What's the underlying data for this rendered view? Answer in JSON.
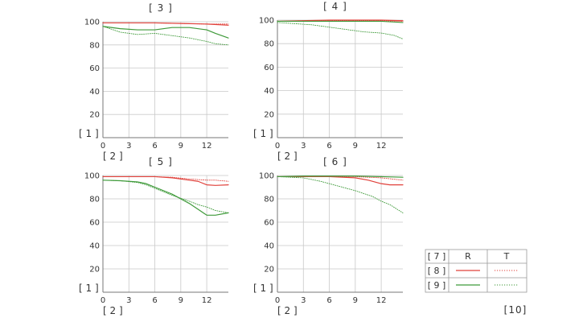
{
  "colors": {
    "red": "#e0403a",
    "green": "#3f9a3a",
    "grid": "#c9c9c9"
  },
  "axis_label_y": "[ 1 ]",
  "axis_label_x": "[ 2 ]",
  "corner_label": "[10]",
  "legend": {
    "header": {
      "key": "[ 7 ]",
      "col_r": "R",
      "col_t": "T"
    },
    "rows": [
      {
        "key": "[ 8 ]",
        "color": "#e0403a"
      },
      {
        "key": "[ 9 ]",
        "color": "#3f9a3a"
      }
    ]
  },
  "chart_data": [
    {
      "type": "line",
      "title": "[ 3 ]",
      "xlim": [
        0,
        14.5
      ],
      "ylim": [
        0,
        100
      ],
      "xticks": [
        0,
        3,
        6,
        9,
        12
      ],
      "yticks": [
        20,
        40,
        60,
        80,
        100
      ],
      "series": [
        {
          "color": "red",
          "style": "solid",
          "x": [
            0,
            3,
            6,
            9,
            12,
            14.5
          ],
          "y": [
            99,
            99,
            99,
            98.5,
            98,
            97
          ]
        },
        {
          "color": "red",
          "style": "dotted",
          "x": [
            0,
            3,
            6,
            9,
            12,
            14.5
          ],
          "y": [
            99,
            99,
            99,
            98.5,
            98,
            98
          ]
        },
        {
          "color": "green",
          "style": "solid",
          "x": [
            0,
            2,
            4,
            6,
            8,
            10,
            12,
            13,
            14.5
          ],
          "y": [
            96,
            94,
            93,
            93,
            95,
            95,
            93,
            90,
            86
          ]
        },
        {
          "color": "green",
          "style": "dotted",
          "x": [
            0,
            2,
            4,
            6,
            8,
            10,
            12,
            13,
            14.5
          ],
          "y": [
            96,
            91,
            89,
            90,
            88,
            86,
            83,
            81,
            80
          ]
        }
      ]
    },
    {
      "type": "line",
      "title": "[ 4 ]",
      "xlim": [
        0,
        14.5
      ],
      "ylim": [
        0,
        100
      ],
      "xticks": [
        0,
        3,
        6,
        9,
        12
      ],
      "yticks": [
        20,
        40,
        60,
        80,
        100
      ],
      "series": [
        {
          "color": "red",
          "style": "solid",
          "x": [
            0,
            3,
            6,
            9,
            12,
            14.5
          ],
          "y": [
            99,
            99.5,
            100,
            100,
            100,
            99.5
          ]
        },
        {
          "color": "red",
          "style": "dotted",
          "x": [
            0,
            3,
            6,
            9,
            12,
            14.5
          ],
          "y": [
            99,
            99.5,
            99.5,
            99.5,
            99.5,
            99
          ]
        },
        {
          "color": "green",
          "style": "solid",
          "x": [
            0,
            3,
            6,
            9,
            12,
            14.5
          ],
          "y": [
            99,
            99,
            99,
            99,
            99,
            98
          ]
        },
        {
          "color": "green",
          "style": "dotted",
          "x": [
            0,
            2,
            4,
            6,
            8,
            10,
            12,
            13.5,
            14.5
          ],
          "y": [
            98,
            97,
            96,
            94,
            92,
            90,
            89,
            87,
            84
          ]
        }
      ]
    },
    {
      "type": "line",
      "title": "[ 5 ]",
      "xlim": [
        0,
        14.5
      ],
      "ylim": [
        0,
        100
      ],
      "xticks": [
        0,
        3,
        6,
        9,
        12
      ],
      "yticks": [
        20,
        40,
        60,
        80,
        100
      ],
      "series": [
        {
          "color": "red",
          "style": "solid",
          "x": [
            0,
            3,
            6,
            8,
            10,
            11,
            12,
            13,
            14.5
          ],
          "y": [
            99,
            99,
            99,
            98,
            96,
            95,
            92,
            91.5,
            92
          ]
        },
        {
          "color": "red",
          "style": "dotted",
          "x": [
            0,
            3,
            6,
            8,
            10,
            12,
            13,
            14.5
          ],
          "y": [
            99,
            99,
            99,
            98.5,
            97,
            96,
            96,
            95
          ]
        },
        {
          "color": "green",
          "style": "solid",
          "x": [
            0,
            2,
            4,
            5,
            6,
            8,
            10,
            11,
            12,
            13,
            14.5
          ],
          "y": [
            96,
            95.5,
            94.5,
            93,
            90,
            84,
            76,
            71,
            66,
            66,
            68
          ]
        },
        {
          "color": "green",
          "style": "dotted",
          "x": [
            0,
            2,
            4,
            5,
            6,
            8,
            10,
            11,
            12,
            13,
            14.5
          ],
          "y": [
            96,
            95.5,
            94,
            92,
            89,
            83,
            78,
            75,
            73,
            70,
            68
          ]
        }
      ]
    },
    {
      "type": "line",
      "title": "[ 6 ]",
      "xlim": [
        0,
        14.5
      ],
      "ylim": [
        0,
        100
      ],
      "xticks": [
        0,
        3,
        6,
        9,
        12
      ],
      "yticks": [
        20,
        40,
        60,
        80,
        100
      ],
      "series": [
        {
          "color": "red",
          "style": "solid",
          "x": [
            0,
            3,
            6,
            9,
            10.5,
            12,
            13,
            14.5
          ],
          "y": [
            99,
            99,
            99,
            98,
            96,
            93,
            92,
            92
          ]
        },
        {
          "color": "red",
          "style": "dotted",
          "x": [
            0,
            3,
            6,
            9,
            12,
            14.5
          ],
          "y": [
            99,
            99,
            99,
            99,
            98,
            96
          ]
        },
        {
          "color": "green",
          "style": "solid",
          "x": [
            0,
            3,
            6,
            9,
            12,
            14.5
          ],
          "y": [
            99,
            99.5,
            99.5,
            99.5,
            99,
            98.5
          ]
        },
        {
          "color": "green",
          "style": "dotted",
          "x": [
            0,
            3,
            5,
            7,
            9,
            11,
            12,
            13,
            14.5
          ],
          "y": [
            99,
            98,
            95,
            91,
            87,
            82,
            78,
            75,
            68
          ]
        }
      ]
    }
  ]
}
